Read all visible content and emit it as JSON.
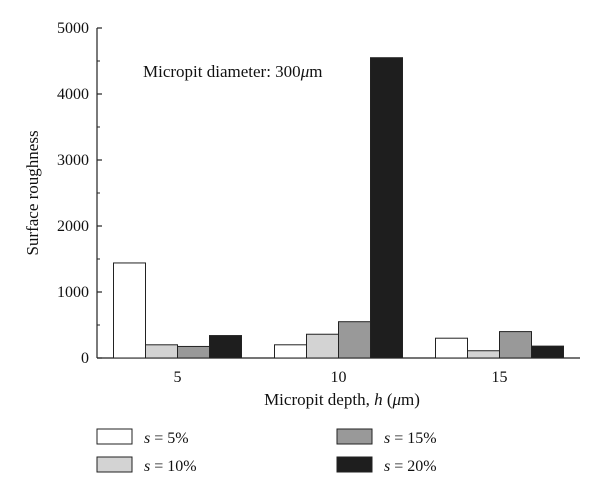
{
  "chart_data": {
    "type": "bar",
    "title": "",
    "annotation": {
      "prefix": "Micropit diameter: 300",
      "unit_symbol": "μ",
      "unit_rest": "m"
    },
    "xlabel": {
      "prefix": "Micropit depth, ",
      "var": "h",
      "unit_open": " (",
      "unit_symbol": "μ",
      "unit_rest": "m)"
    },
    "ylabel": "Surface roughness",
    "ylim": [
      0,
      5000
    ],
    "yticks": [
      0,
      1000,
      2000,
      3000,
      4000,
      5000
    ],
    "categories": [
      "5",
      "10",
      "15"
    ],
    "series": [
      {
        "name_var": "s",
        "name_eq": " = ",
        "name_val": "5%",
        "color": "#ffffff",
        "values": [
          1440,
          200,
          300
        ]
      },
      {
        "name_var": "s",
        "name_eq": " = ",
        "name_val": "10%",
        "color": "#d3d3d3",
        "values": [
          200,
          360,
          110
        ]
      },
      {
        "name_var": "s",
        "name_eq": " = ",
        "name_val": "15%",
        "color": "#999999",
        "values": [
          175,
          550,
          400
        ]
      },
      {
        "name_var": "s",
        "name_eq": " = ",
        "name_val": "20%",
        "color": "#1e1e1e",
        "values": [
          340,
          4550,
          180
        ]
      }
    ],
    "legend_placement": "bottom",
    "grid": false
  }
}
